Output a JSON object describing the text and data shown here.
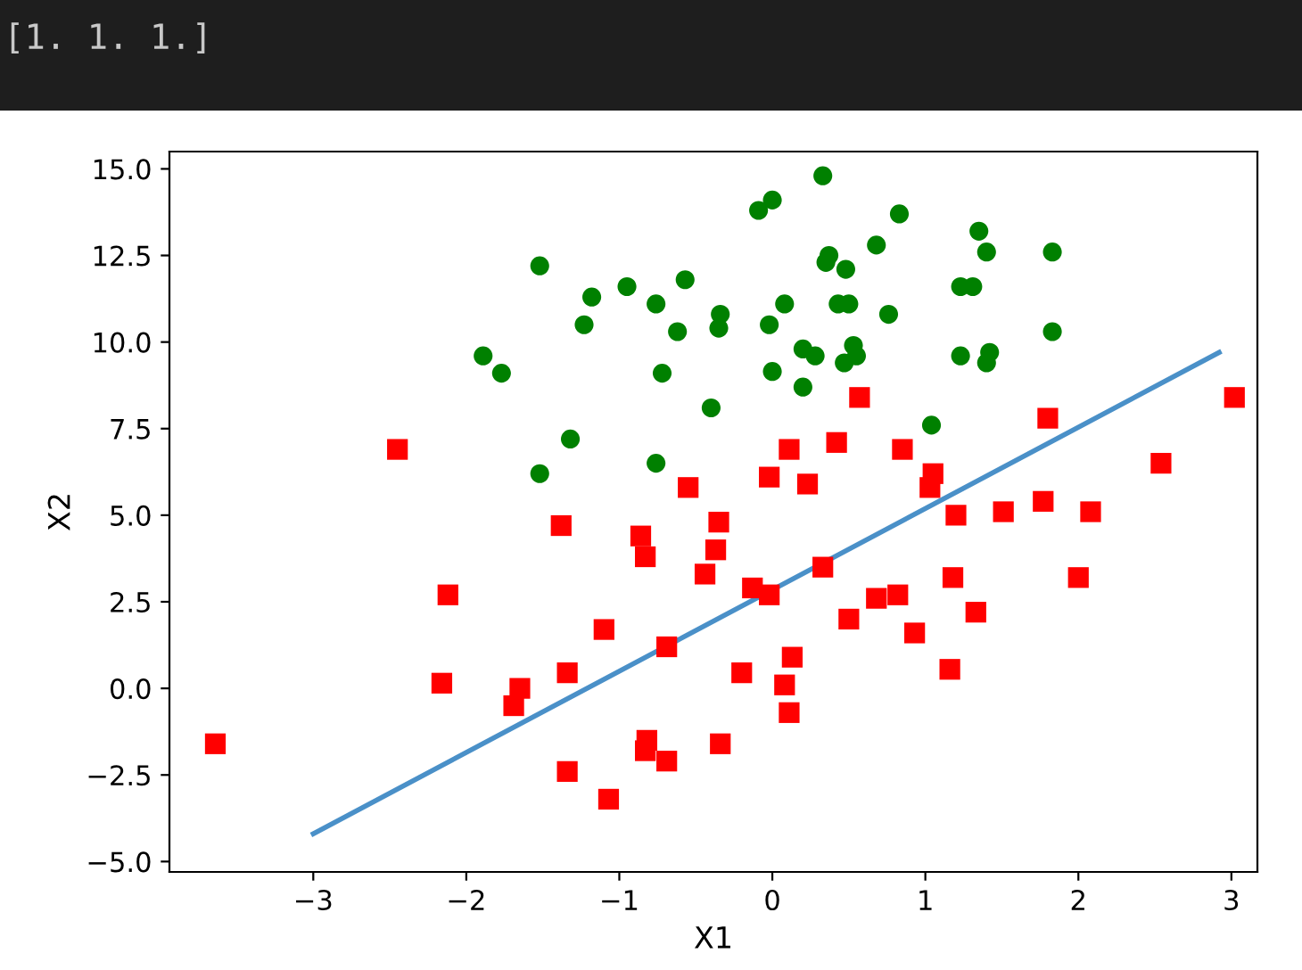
{
  "chart_data": {
    "type": "scatter",
    "xlabel": "X1",
    "ylabel": "X2",
    "annotations": [
      "[1. 1. 1.]"
    ],
    "xlim": [
      -3.94,
      3.17
    ],
    "ylim": [
      -5.3,
      15.5
    ],
    "xticks": [
      {
        "value": -3,
        "label": "−3"
      },
      {
        "value": -2,
        "label": "−2"
      },
      {
        "value": -1,
        "label": "−1"
      },
      0,
      1,
      2,
      3
    ],
    "yticks": [
      {
        "value": -5,
        "label": "−5.0"
      },
      {
        "value": -2.5,
        "label": "−2.5"
      },
      {
        "value": 0,
        "label": "0.0"
      },
      {
        "value": 2.5,
        "label": "2.5"
      },
      {
        "value": 5,
        "label": "5.0"
      },
      {
        "value": 7.5,
        "label": "7.5"
      },
      {
        "value": 10,
        "label": "10.0"
      },
      {
        "value": 12.5,
        "label": "12.5"
      },
      {
        "value": 15,
        "label": "15.0"
      }
    ],
    "grid": false,
    "series": [
      {
        "marker": "circle",
        "color": "#008000",
        "x": [
          -1.52,
          -1.18,
          -1.23,
          -0.95,
          -0.57,
          -0.76,
          -0.62,
          -1.89,
          -1.77,
          -0.72,
          -1.32,
          -1.52,
          -0.76,
          -0.4,
          -0.34,
          -0.35,
          0.33,
          -0.09,
          0.0,
          0.83,
          1.35,
          1.4,
          1.83,
          0.68,
          0.37,
          0.35,
          0.48,
          1.23,
          1.31,
          0.43,
          0.5,
          0.08,
          -0.02,
          0.76,
          1.83,
          0.2,
          0.28,
          0.53,
          0.55,
          0.47,
          0.0,
          0.2,
          1.23,
          1.42,
          1.4,
          1.04
        ],
        "values": [
          12.2,
          11.3,
          10.5,
          11.6,
          11.8,
          11.1,
          10.3,
          9.6,
          9.1,
          9.1,
          7.2,
          6.2,
          6.5,
          8.1,
          10.8,
          10.4,
          14.8,
          13.8,
          14.1,
          13.7,
          13.2,
          12.6,
          12.6,
          12.8,
          12.5,
          12.3,
          12.1,
          11.6,
          11.6,
          11.1,
          11.1,
          11.1,
          10.5,
          10.8,
          10.3,
          9.8,
          9.6,
          9.9,
          9.6,
          9.4,
          9.15,
          8.7,
          9.6,
          9.7,
          9.4,
          7.6
        ]
      },
      {
        "marker": "square",
        "color": "#ff0000",
        "x": [
          0.57,
          3.02,
          1.8,
          0.11,
          0.42,
          0.85,
          -0.02,
          0.23,
          1.05,
          1.03,
          2.54,
          -2.45,
          -0.55,
          1.2,
          1.51,
          1.77,
          2.08,
          -0.35,
          -0.37,
          -0.44,
          -0.13,
          -0.02,
          0.33,
          0.5,
          0.68,
          0.82,
          1.18,
          2.0,
          0.93,
          1.33,
          0.13,
          -0.2,
          0.08,
          0.11,
          1.16,
          -0.34,
          -3.64,
          -2.12,
          -2.16,
          -1.38,
          -0.86,
          -0.83,
          -1.1,
          -0.69,
          -1.65,
          -1.69,
          -1.34,
          -0.82,
          -0.83,
          -0.69,
          -1.34,
          -1.07
        ],
        "values": [
          8.4,
          8.4,
          7.8,
          6.9,
          7.1,
          6.9,
          6.1,
          5.9,
          6.2,
          5.8,
          6.5,
          6.9,
          5.8,
          5.0,
          5.1,
          5.4,
          5.1,
          4.8,
          4.0,
          3.3,
          2.9,
          2.7,
          3.5,
          2.0,
          2.6,
          2.7,
          3.2,
          3.2,
          1.6,
          2.2,
          0.9,
          0.45,
          0.1,
          -0.7,
          0.55,
          -1.6,
          -1.6,
          2.7,
          0.15,
          4.7,
          4.4,
          3.8,
          1.7,
          1.2,
          0.0,
          -0.5,
          0.45,
          -1.5,
          -1.8,
          -2.1,
          -2.4,
          -3.2
        ]
      },
      {
        "type": "line",
        "color": "#4a90c8",
        "x": [
          -3,
          2.92
        ],
        "values": [
          -4.2,
          9.7
        ]
      }
    ]
  }
}
